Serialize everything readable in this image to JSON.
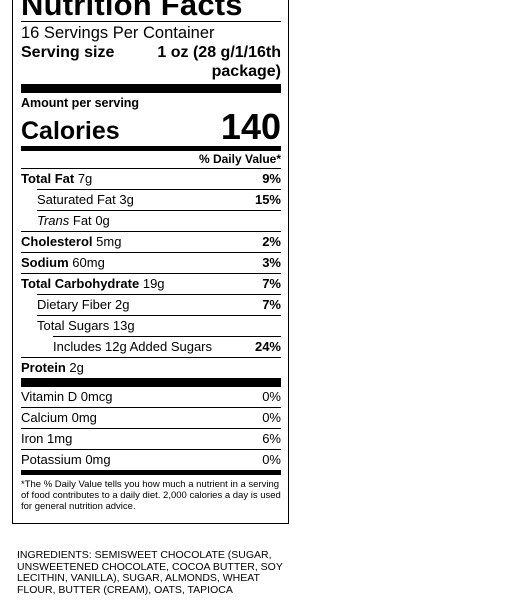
{
  "label": {
    "title": "Nutrition Facts",
    "servings_per_container": "16 Servings Per Container",
    "serving_size_label": "Serving size",
    "serving_size_value": "1 oz (28 g/1/16th package)",
    "amount_per_serving": "Amount per serving",
    "calories_label": "Calories",
    "calories_value": "140",
    "daily_value_header": "% Daily Value*",
    "nutrients": [
      {
        "name": "Total Fat",
        "amount": "7g",
        "dv": "9%"
      },
      {
        "name": "Saturated Fat",
        "amount": "3g",
        "dv": "15%"
      },
      {
        "name": "Trans",
        "suffix": "Fat",
        "amount": "0g",
        "dv": ""
      },
      {
        "name": "Cholesterol",
        "amount": "5mg",
        "dv": "2%"
      },
      {
        "name": "Sodium",
        "amount": "60mg",
        "dv": "3%"
      },
      {
        "name": "Total Carbohydrate",
        "amount": "19g",
        "dv": "7%"
      },
      {
        "name": "Dietary Fiber",
        "amount": "2g",
        "dv": "7%"
      },
      {
        "name": "Total Sugars",
        "amount": "13g",
        "dv": ""
      },
      {
        "name": "Includes 12g Added Sugars",
        "amount": "",
        "dv": "24%"
      },
      {
        "name": "Protein",
        "amount": "2g",
        "dv": ""
      }
    ],
    "vitamins": [
      {
        "name": "Vitamin D",
        "amount": "0mcg",
        "dv": "0%"
      },
      {
        "name": "Calcium",
        "amount": "0mg",
        "dv": "0%"
      },
      {
        "name": "Iron",
        "amount": "1mg",
        "dv": "6%"
      },
      {
        "name": "Potassium",
        "amount": "0mg",
        "dv": "0%"
      }
    ],
    "footnote": "*The % Daily Value tells you how much a nutrient in a serving of food contributes to a daily diet. 2,000 calories a day is used for general nutrition advice."
  },
  "ingredients": "INGREDIENTS: SEMISWEET CHOCOLATE (SUGAR, UNSWEETENED CHOCOLATE, COCOA BUTTER, SOY LECITHIN, VANILLA), SUGAR, ALMONDS, WHEAT FLOUR, BUTTER (CREAM), OATS, TAPIOCA"
}
